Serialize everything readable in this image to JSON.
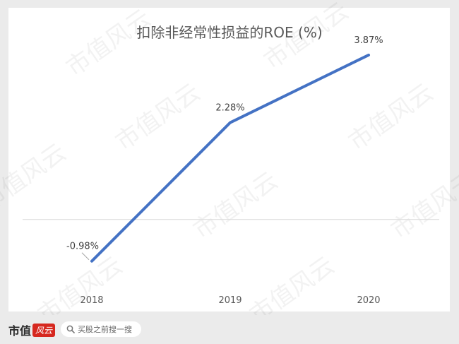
{
  "chart_data": {
    "type": "line",
    "title": "扣除非经常性损益的ROE (%)",
    "categories": [
      "2018",
      "2019",
      "2020"
    ],
    "series": [
      {
        "values": [
          -0.98,
          2.28,
          3.87
        ],
        "labels": [
          "-0.98%",
          "2.28%",
          "3.87%"
        ]
      }
    ],
    "xlabel": "",
    "ylabel": "",
    "ylim": [
      -1.5,
      4.5
    ],
    "grid": false,
    "line_color": "#4472c4"
  },
  "watermark": "市值风云",
  "footer": {
    "brand": "市值",
    "brand_seal": "风云",
    "search_text": "买股之前搜一搜"
  }
}
